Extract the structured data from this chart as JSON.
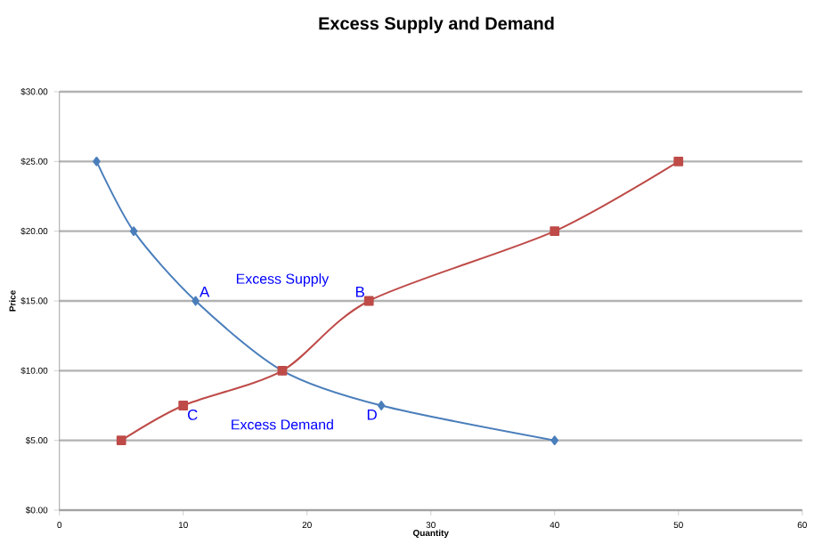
{
  "chart_data": {
    "type": "line",
    "title": "Excess Supply and Demand",
    "xlabel": "Quantity",
    "ylabel": "Price",
    "xlim": [
      0,
      60
    ],
    "xticks": [
      0,
      10,
      20,
      30,
      40,
      50,
      60
    ],
    "ylim": [
      0,
      30
    ],
    "yticks": [
      {
        "value": 0,
        "label": "$0.00"
      },
      {
        "value": 5,
        "label": "$5.00"
      },
      {
        "value": 10,
        "label": "$10.00"
      },
      {
        "value": 15,
        "label": "$15.00"
      },
      {
        "value": 20,
        "label": "$20.00"
      },
      {
        "value": 25,
        "label": "$25.00"
      },
      {
        "value": 30,
        "label": "$30.00"
      }
    ],
    "grid": "y",
    "line_style": "solid",
    "series": [
      {
        "color": "#4a7ebb",
        "marker": "diamond",
        "x": [
          3,
          6,
          11,
          18,
          26,
          40
        ],
        "values": [
          25,
          20,
          15,
          10,
          7.5,
          5
        ]
      },
      {
        "color": "#be4b48",
        "marker": "square",
        "x": [
          5,
          10,
          18,
          25,
          40,
          50
        ],
        "values": [
          5,
          7.5,
          10,
          15,
          20,
          25
        ]
      }
    ],
    "annotations": [
      {
        "text": "A",
        "x": 11,
        "y": 15
      },
      {
        "text": "B",
        "x": 25,
        "y": 15
      },
      {
        "text": "C",
        "x": 10,
        "y": 7.5
      },
      {
        "text": "D",
        "x": 26,
        "y": 7.5
      },
      "Excess Supply",
      "Excess Demand"
    ]
  }
}
